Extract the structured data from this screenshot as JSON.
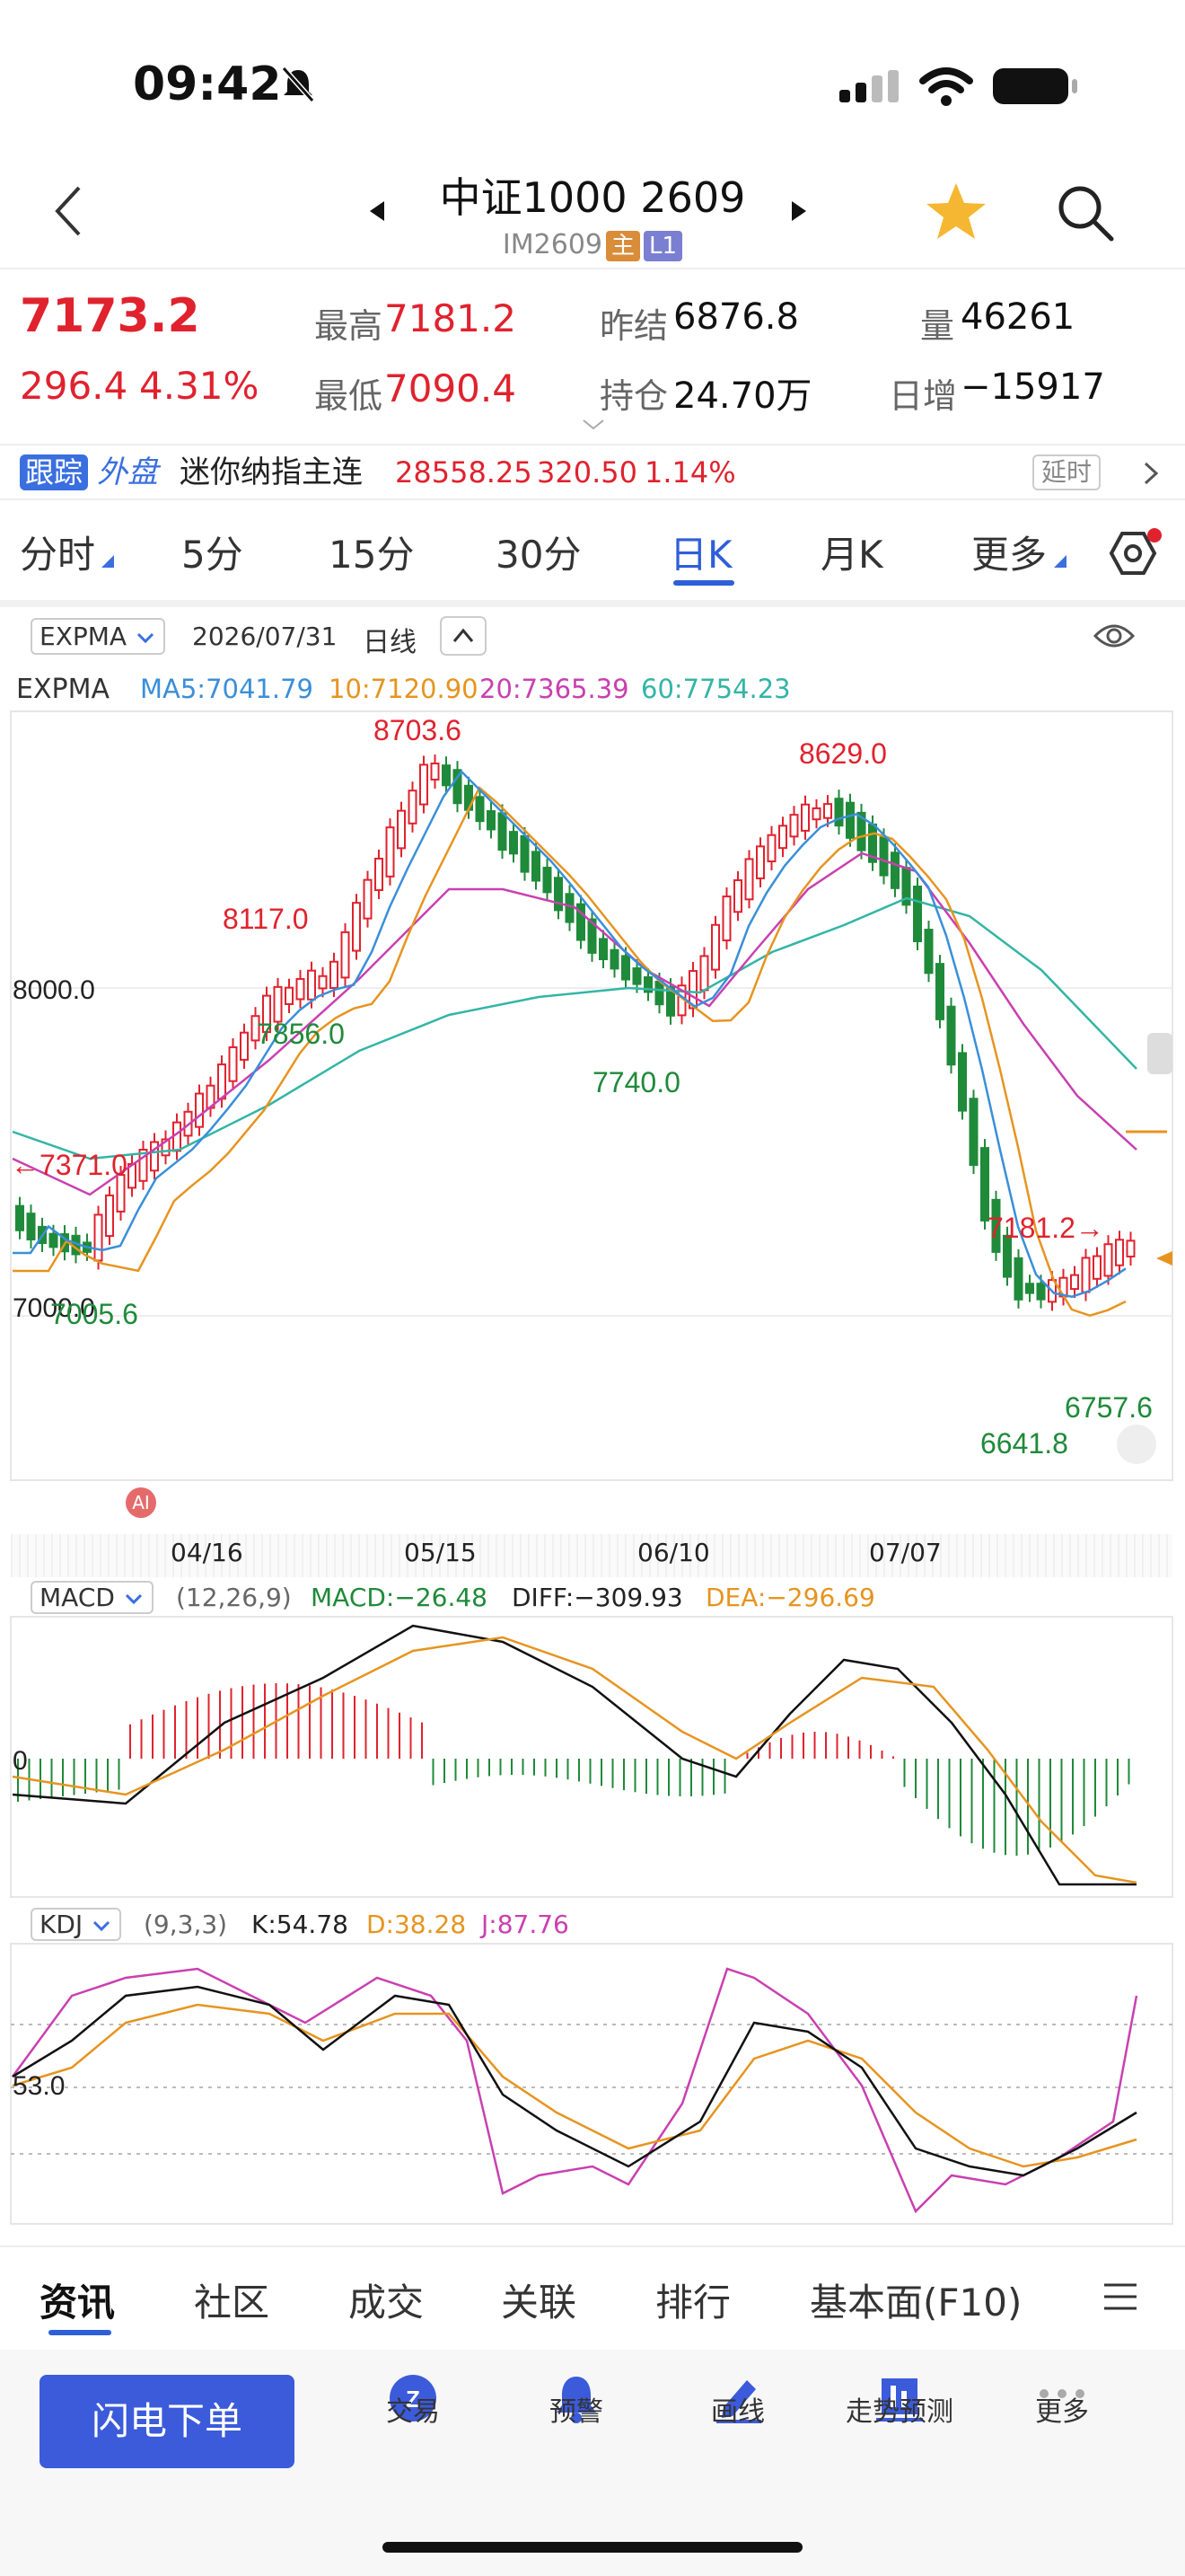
{
  "status": {
    "time": "09:42"
  },
  "nav": {
    "title": "中证1000 2609",
    "code": "IM2609",
    "tag_main": "主",
    "tag_level": "L1"
  },
  "quote": {
    "last": "7173.2",
    "change": "296.4",
    "change_pct": "4.31%",
    "high_label": "最高",
    "high": "7181.2",
    "low_label": "最低",
    "low": "7090.4",
    "prev_label": "昨结",
    "prev": "6876.8",
    "oi_label": "持仓",
    "oi": "24.70万",
    "vol_label": "量",
    "vol": "46261",
    "daily_add_label": "日增",
    "daily_add": "−15917"
  },
  "ticker": {
    "follow_a": "跟踪",
    "follow_b": "外盘",
    "name": "迷你纳指主连",
    "price": "28558.25",
    "chg": "320.50",
    "pct": "1.14%",
    "delay": "延时"
  },
  "tabs": [
    {
      "label": "分时",
      "active": false
    },
    {
      "label": "5分",
      "active": false
    },
    {
      "label": "15分",
      "active": false
    },
    {
      "label": "30分",
      "active": false
    },
    {
      "label": "日K",
      "active": true
    },
    {
      "label": "月K",
      "active": false
    },
    {
      "label": "更多",
      "active": false
    }
  ],
  "kline": {
    "indicator": "EXPMA",
    "date": "2026/07/31",
    "period": "日线",
    "legend": {
      "name": "EXPMA",
      "ma5": "MA5:7041.79",
      "ma10": "10:7120.90",
      "ma20": "20:7365.39",
      "ma60": "60:7754.23"
    },
    "ai": "AI",
    "y_labels": [
      "8000.0",
      "7000.0"
    ],
    "x_labels": [
      "04/16",
      "05/15",
      "06/10",
      "07/07"
    ],
    "annotations": {
      "high1": "8703.6",
      "high2": "8629.0",
      "p8117": "8117.0",
      "p7856": "7856.0",
      "p7740": "7740.0",
      "p7371": "←7371.0",
      "p7005": "7005.6",
      "p7181": "7181.2→",
      "p6641": "6641.8",
      "p6757": "6757.6"
    }
  },
  "macd": {
    "name": "MACD",
    "params": "(12,26,9)",
    "macd": "MACD:−26.48",
    "diff": "DIFF:−309.93",
    "dea": "DEA:−296.69",
    "zero": "0"
  },
  "kdj": {
    "name": "KDJ",
    "params": "(9,3,3)",
    "k": "K:54.78",
    "d": "D:38.28",
    "j": "J:87.76",
    "level": "53.0"
  },
  "bottom_tabs": [
    "资讯",
    "社区",
    "成交",
    "关联",
    "排行",
    "基本面(F10)"
  ],
  "actions": {
    "trade_button": "闪电下单",
    "items": [
      "交易",
      "预警",
      "画线",
      "走势预测",
      "更多"
    ]
  },
  "colors": {
    "red": "#e0222e",
    "green": "#1f8a3a",
    "blue": "#3b5bdb",
    "ma5": "#3a8fd9",
    "ma10": "#e69420",
    "ma20": "#c940b0",
    "ma60": "#33b5a5"
  }
}
